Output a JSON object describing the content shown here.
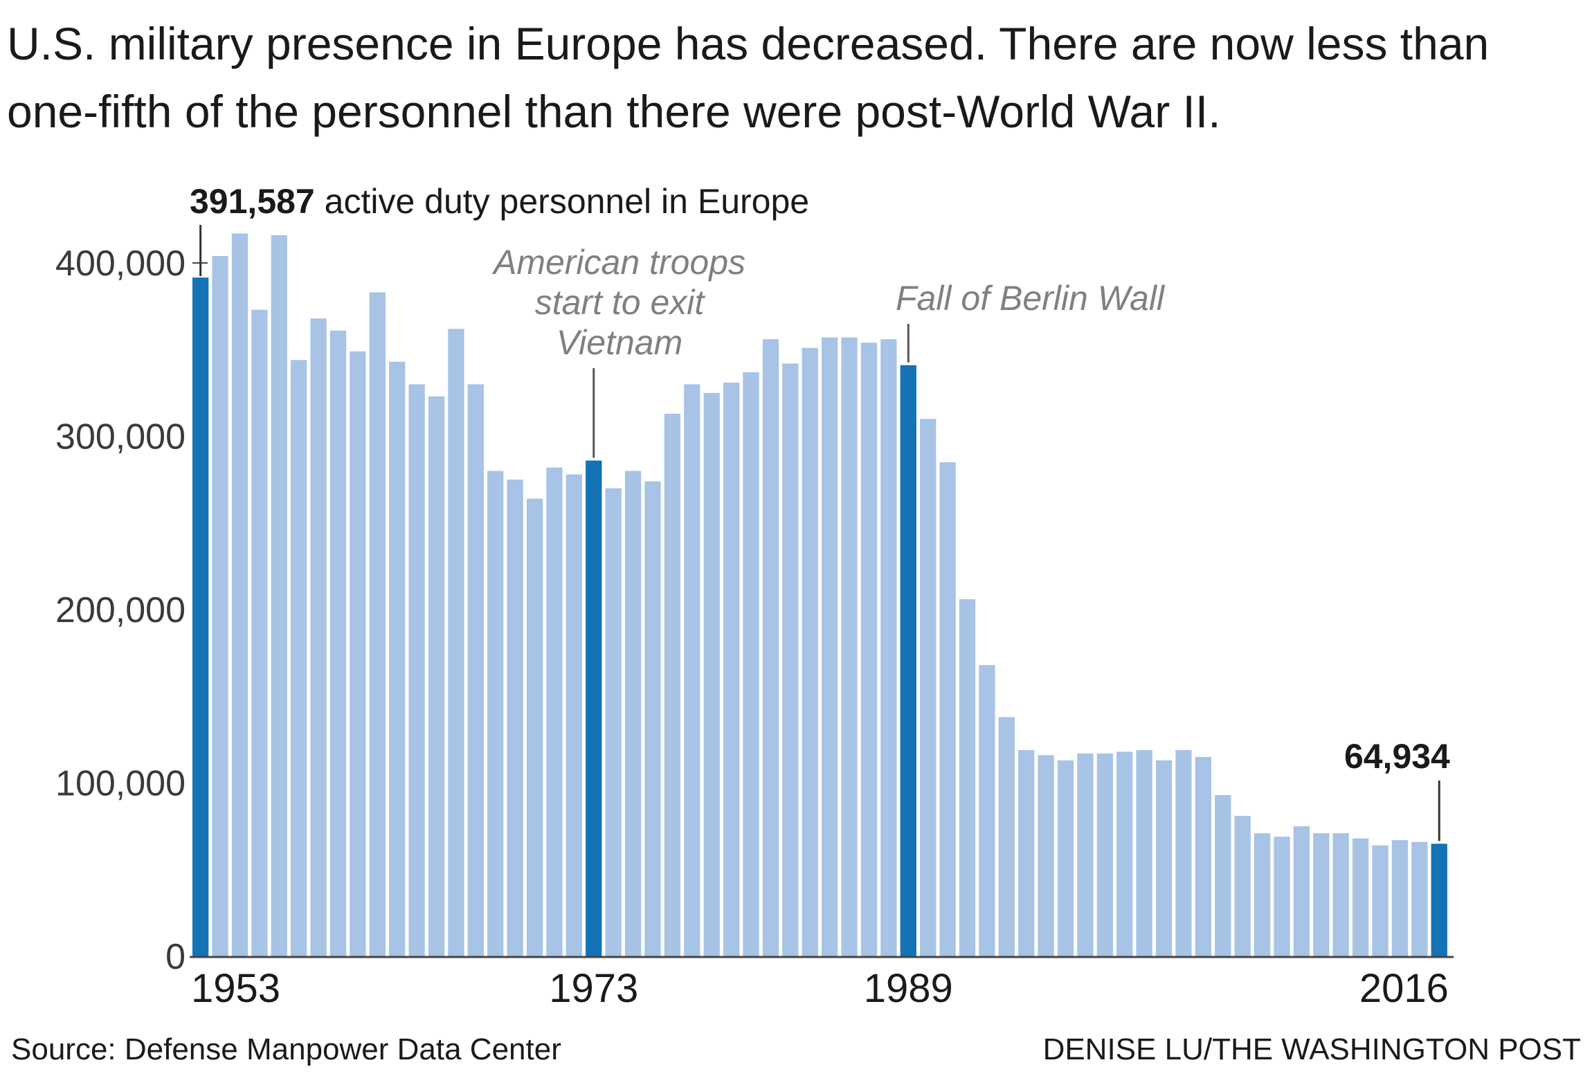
{
  "title": "U.S. military presence in Europe has decreased. There are now less than one-fifth of the personnel than there were post-World War II.",
  "source": "Source: Defense Manpower Data Center",
  "credit": "DENISE LU/THE WASHINGTON POST",
  "colors": {
    "bar": "#a7c3e6",
    "highlight": "#1373b4",
    "annotation": "#808080",
    "axis": "#444444"
  },
  "chart_data": {
    "type": "bar",
    "title": "",
    "xlabel": "",
    "ylabel": "",
    "ylim": [
      0,
      425000
    ],
    "yticks": [
      {
        "value": 0,
        "label": "0"
      },
      {
        "value": 100000,
        "label": "100,000"
      },
      {
        "value": 200000,
        "label": "200,000"
      },
      {
        "value": 300000,
        "label": "300,000"
      },
      {
        "value": 400000,
        "label": "400,000"
      }
    ],
    "xtick_labels": [
      "1953",
      "1973",
      "1989",
      "2016"
    ],
    "grid": false,
    "categories": [
      "1953",
      "1954",
      "1955",
      "1956",
      "1957",
      "1958",
      "1959",
      "1960",
      "1961",
      "1962",
      "1963",
      "1964",
      "1965",
      "1966",
      "1967",
      "1968",
      "1969",
      "1970",
      "1971",
      "1972",
      "1973",
      "1974",
      "1975",
      "1976",
      "1977",
      "1978",
      "1979",
      "1980",
      "1981",
      "1982",
      "1983",
      "1984",
      "1985",
      "1986",
      "1987",
      "1988",
      "1989",
      "1990",
      "1991",
      "1992",
      "1993",
      "1994",
      "1995",
      "1996",
      "1997",
      "1998",
      "1999",
      "2000",
      "2001",
      "2002",
      "2003",
      "2004",
      "2005",
      "2006",
      "2007",
      "2008",
      "2009",
      "2010",
      "2011",
      "2012",
      "2013",
      "2014",
      "2015",
      "2016"
    ],
    "values": [
      391587,
      404000,
      417000,
      373000,
      416000,
      344000,
      368000,
      361000,
      349000,
      383000,
      343000,
      330000,
      323000,
      362000,
      330000,
      280000,
      275000,
      264000,
      282000,
      278000,
      286000,
      270000,
      280000,
      274000,
      313000,
      330000,
      325000,
      331000,
      337000,
      356000,
      342000,
      351000,
      357000,
      357000,
      354000,
      356000,
      341000,
      310000,
      285000,
      206000,
      168000,
      138000,
      119000,
      116000,
      113000,
      117000,
      117000,
      118000,
      119000,
      113000,
      119000,
      115000,
      93000,
      81000,
      71000,
      69000,
      75000,
      71000,
      71000,
      68000,
      64000,
      67000,
      66000,
      64934
    ],
    "highlighted": [
      "1953",
      "1973",
      "1989",
      "2016"
    ],
    "annotations": [
      {
        "year": "1953",
        "bold": "391,587",
        "text": " active duty personnel in Europe"
      },
      {
        "year": "1973",
        "lines": [
          "American troops",
          "start to exit",
          "Vietnam"
        ]
      },
      {
        "year": "1989",
        "lines": [
          "Fall of Berlin Wall"
        ]
      },
      {
        "year": "2016",
        "bold": "64,934"
      }
    ]
  }
}
